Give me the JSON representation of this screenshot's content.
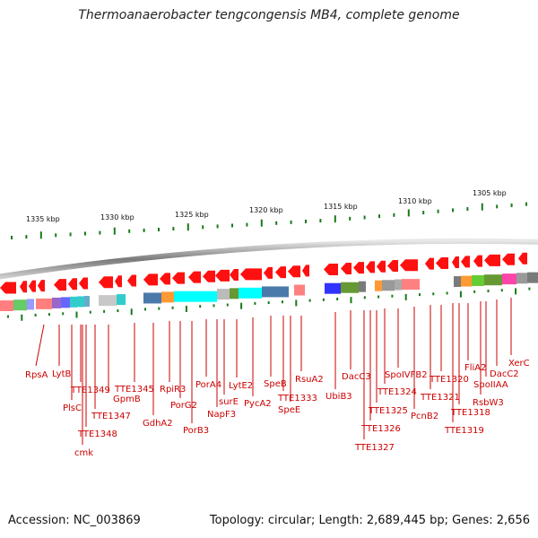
{
  "title": "Thermoanaerobacter tengcongensis MB4, complete genome",
  "footer": {
    "accession": "Accession: NC_003869",
    "stats": "Topology: circular; Length: 2,689,445 bp; Genes: 2,656"
  },
  "scale": {
    "unit_suffix": " kbp",
    "labels": [
      "1335 kbp",
      "1330 kbp",
      "1325 kbp",
      "1320 kbp",
      "1315 kbp",
      "1310 kbp",
      "1305 kbp"
    ]
  },
  "genes": [
    "RpsA",
    "LytB",
    "PlsC",
    "TTE1349",
    "cmk",
    "TTE1348",
    "TTE1347",
    "GpmB",
    "TTE1345",
    "GdhA2",
    "RpiR3",
    "PorG2",
    "PorB3",
    "PorA4",
    "NapF3",
    "surE",
    "LytE2",
    "PycA2",
    "SpeB",
    "TTE1333",
    "SpeE",
    "RsuA2",
    "UbiB3",
    "DacC3",
    "TTE1327",
    "TTE1326",
    "TTE1325",
    "TTE1324",
    "SpoIVFB2",
    "PcnB2",
    "TTE1321",
    "TTE1320",
    "TTE1319",
    "TTE1318",
    "FliA2",
    "RsbW3",
    "SpoIIAA",
    "DacC2",
    "XerC"
  ],
  "colors": {
    "forward_strand": "#ff0000",
    "reverse_strand": "#ff0000",
    "label": "#cc0000",
    "ticks": "#1a7a1a",
    "backbone": "#808080"
  }
}
